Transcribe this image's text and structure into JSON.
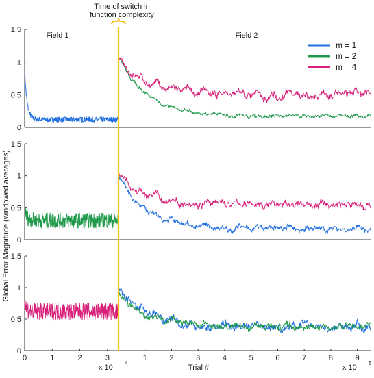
{
  "annotation": {
    "line1": "Time of switch in",
    "line2": "function complexity",
    "switch_color": "#f5c518"
  },
  "field_labels": {
    "field1": "Field 1",
    "field2": "Field 2"
  },
  "axes": {
    "ylabel": "Global Error Magnitude (windowed averages)",
    "xlabel": "Trial #",
    "x1_tick_labels": [
      "0",
      "1",
      "2",
      "3"
    ],
    "x1_multiplier": "x 10",
    "x1_exponent": "4",
    "x2_tick_labels": [
      "1",
      "2",
      "3",
      "4",
      "5",
      "6",
      "7",
      "8",
      "9"
    ],
    "x2_multiplier": "x 10",
    "x2_exponent": "5",
    "y_tick_labels": [
      "0",
      "0.5",
      "1",
      "1.5"
    ]
  },
  "legend": [
    {
      "label": "m = 1",
      "color": "#1f6fe0"
    },
    {
      "label": "m = 2",
      "color": "#1f9a4a"
    },
    {
      "label": "m = 4",
      "color": "#d8207a"
    }
  ],
  "chart_data": [
    {
      "type": "line",
      "panel": "top",
      "ylim": [
        0,
        1.5
      ],
      "series": [
        {
          "name": "m = 1",
          "color": "#1f6fe0",
          "segment": "field1",
          "start": 0.9,
          "level": 0.12,
          "noise": 0.04,
          "end_x": 34000
        },
        {
          "name": "m = 2",
          "color": "#1f9a4a",
          "segment": "field2",
          "start": 1.1,
          "level": 0.17,
          "noise": 0.03,
          "x": [
            0,
            950000
          ]
        },
        {
          "name": "m = 4",
          "color": "#d8207a",
          "segment": "field2",
          "start": 1.05,
          "level": 0.5,
          "noise": 0.06,
          "x": [
            0,
            950000
          ]
        }
      ]
    },
    {
      "type": "line",
      "panel": "middle",
      "ylim": [
        0,
        1.5
      ],
      "series": [
        {
          "name": "m = 2",
          "color": "#1f9a4a",
          "segment": "field1",
          "start": 0.45,
          "level": 0.3,
          "noise": 0.12,
          "end_x": 34000
        },
        {
          "name": "m = 1",
          "color": "#1f6fe0",
          "segment": "field2",
          "start": 1.0,
          "level": 0.17,
          "noise": 0.05,
          "x": [
            0,
            950000
          ]
        },
        {
          "name": "m = 4",
          "color": "#d8207a",
          "segment": "field2",
          "start": 1.0,
          "level": 0.55,
          "noise": 0.06,
          "x": [
            0,
            950000
          ]
        }
      ]
    },
    {
      "type": "line",
      "panel": "bottom",
      "ylim": [
        0,
        1.5
      ],
      "series": [
        {
          "name": "m = 4",
          "color": "#d8207a",
          "segment": "field1",
          "start": 0.75,
          "level": 0.62,
          "noise": 0.14,
          "end_x": 34000
        },
        {
          "name": "m = 1",
          "color": "#1f6fe0",
          "segment": "field2",
          "start": 0.95,
          "level": 0.38,
          "noise": 0.07,
          "x": [
            0,
            950000
          ]
        },
        {
          "name": "m = 2",
          "color": "#1f9a4a",
          "segment": "field2",
          "start": 0.9,
          "level": 0.38,
          "noise": 0.06,
          "x": [
            0,
            950000
          ]
        }
      ]
    }
  ]
}
